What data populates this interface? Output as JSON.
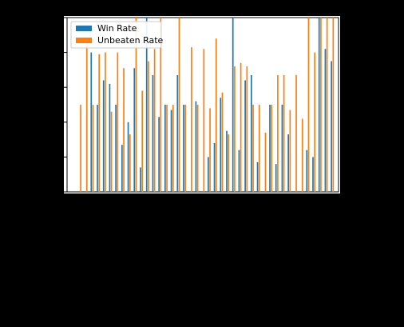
{
  "chart_data": {
    "type": "bar",
    "title": "",
    "xlabel": "",
    "ylabel": "",
    "ylim": [
      0,
      1
    ],
    "colors": {
      "win": "#1f77b4",
      "unbeaten": "#ff7f0e"
    },
    "series": [
      {
        "name": "Win Rate",
        "values": [
          0,
          0,
          0.8,
          0.5,
          0.64,
          0.62,
          0.5,
          0.27,
          0.4,
          0.71,
          0.14,
          1.0,
          0.67,
          0.43,
          0.5,
          0.47,
          0.67,
          0.5,
          0,
          0.52,
          0,
          0.2,
          0.28,
          0.54,
          0.35,
          1.0,
          0.24,
          0.64,
          0.67,
          0.17,
          0,
          0.5,
          0.16,
          0.5,
          0.33,
          0,
          0,
          0.24,
          0.2,
          1.0,
          0.82,
          0.75
        ]
      },
      {
        "name": "Unbeaten Rate",
        "values": [
          0.5,
          0.87,
          0.5,
          0.79,
          0.8,
          0.46,
          0.8,
          0.71,
          0.33,
          1.0,
          0.58,
          0.75,
          0.82,
          1.0,
          0.5,
          0.5,
          1.0,
          0.5,
          0.83,
          0.5,
          0.82,
          0.48,
          0.88,
          0.57,
          0.33,
          0.72,
          0.74,
          0.72,
          0.5,
          0.5,
          0.34,
          0.5,
          0.67,
          0.67,
          0.47,
          0.67,
          0.42,
          1.0,
          0.8,
          1.0,
          1.0,
          1.0
        ]
      }
    ],
    "legend": {
      "position": "top-left"
    }
  }
}
